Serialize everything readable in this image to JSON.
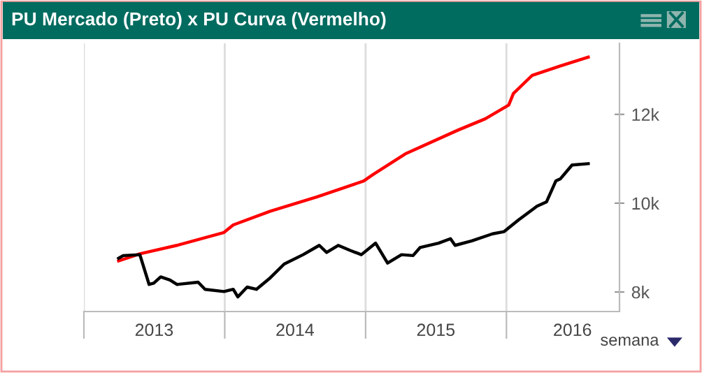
{
  "chart_data": {
    "type": "line",
    "title": "PU Mercado (Preto) x PU Curva (Vermelho)",
    "annotations": [
      "semana"
    ],
    "series": [
      {
        "color": "#ff0000",
        "x": [
          "2013-04-01",
          "2013-05-26",
          "2013-08-30",
          "2013-12-30",
          "2014-01-23",
          "2014-04-29",
          "2014-08-28",
          "2014-12-27",
          "2015-01-21",
          "2015-04-16",
          "2015-08-27",
          "2015-11-07",
          "2016-01-07",
          "2016-01-19",
          "2016-03-08",
          "2016-05-20",
          "2016-07-31"
        ],
        "values": [
          8700,
          8860,
          9050,
          9340,
          9510,
          9820,
          10140,
          10500,
          10650,
          11120,
          11640,
          11900,
          12210,
          12470,
          12880,
          13090,
          13290
        ]
      },
      {
        "color": "#000000",
        "x": [
          "2013-04-01",
          "2013-04-13",
          "2013-05-26",
          "2013-06-19",
          "2013-07-01",
          "2013-07-19",
          "2013-08-12",
          "2013-08-30",
          "2013-10-24",
          "2013-11-11",
          "2013-12-30",
          "2014-01-23",
          "2014-02-04",
          "2014-02-28",
          "2014-03-24",
          "2014-04-29",
          "2014-06-04",
          "2014-07-23",
          "2014-09-03",
          "2014-09-22",
          "2014-10-22",
          "2014-11-21",
          "2014-12-21",
          "2015-01-27",
          "2015-02-27",
          "2015-04-04",
          "2015-05-04",
          "2015-05-22",
          "2015-07-09",
          "2015-08-09",
          "2015-08-21",
          "2015-10-03",
          "2015-11-26",
          "2015-12-26",
          "2016-02-01",
          "2016-03-20",
          "2016-04-14",
          "2016-05-08",
          "2016-05-20",
          "2016-06-19",
          "2016-07-31"
        ],
        "values": [
          8760,
          8820,
          8840,
          8170,
          8200,
          8340,
          8270,
          8170,
          8220,
          8060,
          8010,
          8060,
          7890,
          8110,
          8060,
          8320,
          8630,
          8840,
          9050,
          8890,
          9050,
          8940,
          8840,
          9100,
          8650,
          8840,
          8820,
          9000,
          9100,
          9200,
          9050,
          9150,
          9310,
          9360,
          9620,
          9930,
          10030,
          10500,
          10550,
          10860,
          10890
        ]
      }
    ],
    "xlim": [
      "2013-01-01",
      "2016-10-20"
    ],
    "xticks": [
      {
        "value": "2013-01-01",
        "label": null
      },
      {
        "value": "2013-07-02",
        "label": "2013"
      },
      {
        "value": "2014-01-01",
        "label": null
      },
      {
        "value": "2014-07-02",
        "label": "2014"
      },
      {
        "value": "2015-01-01",
        "label": null
      },
      {
        "value": "2015-07-02",
        "label": "2015"
      },
      {
        "value": "2016-01-01",
        "label": null
      },
      {
        "value": "2016-06-20",
        "label": "2016"
      }
    ],
    "ylim": [
      7560,
      13600
    ],
    "yticks": [
      {
        "value": 8000,
        "label": "8k"
      },
      {
        "value": 10000,
        "label": "10k"
      },
      {
        "value": 12000,
        "label": "12k"
      }
    ],
    "grid": "x",
    "marker": "none",
    "line_style": "solid"
  }
}
